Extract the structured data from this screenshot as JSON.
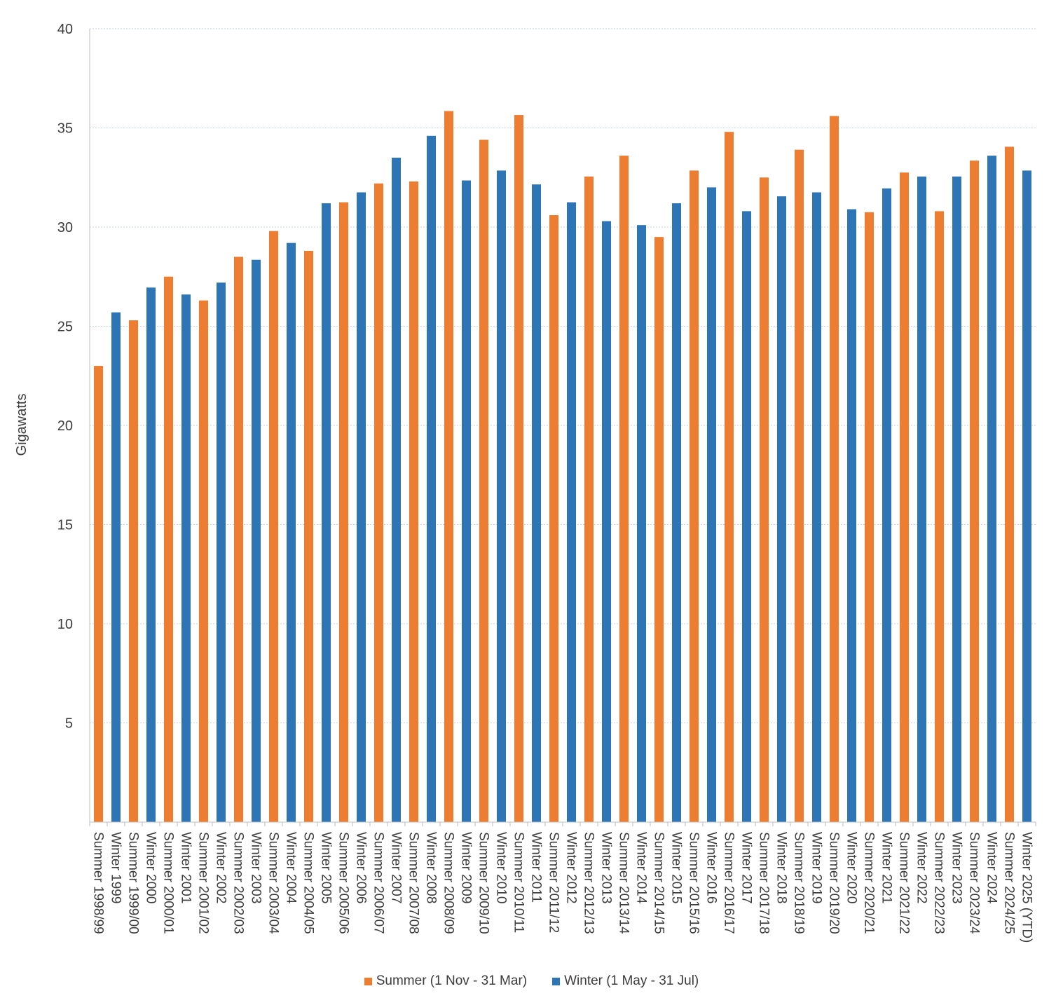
{
  "chart_data": {
    "type": "bar",
    "title": "",
    "xlabel": "",
    "ylabel": "Gigawatts",
    "ylim": [
      0,
      40
    ],
    "yticks": [
      5,
      10,
      15,
      20,
      25,
      30,
      35,
      40
    ],
    "grid": true,
    "legend_position": "bottom",
    "series": [
      {
        "name": "Summer (1 Nov - 31 Mar)",
        "color": "#ED7D31"
      },
      {
        "name": "Winter (1 May - 31 Jul)",
        "color": "#2E75B6"
      }
    ],
    "bars": [
      {
        "label": "Summer 1998/99",
        "series": 0,
        "value": 23.0
      },
      {
        "label": "Winter 1999",
        "series": 1,
        "value": 25.7
      },
      {
        "label": "Summer 1999/00",
        "series": 0,
        "value": 25.3
      },
      {
        "label": "Winter 2000",
        "series": 1,
        "value": 26.95
      },
      {
        "label": "Summer 2000/01",
        "series": 0,
        "value": 27.5
      },
      {
        "label": "Winter 2001",
        "series": 1,
        "value": 26.6
      },
      {
        "label": "Summer 2001/02",
        "series": 0,
        "value": 26.3
      },
      {
        "label": "Winter 2002",
        "series": 1,
        "value": 27.2
      },
      {
        "label": "Summer 2002/03",
        "series": 0,
        "value": 28.5
      },
      {
        "label": "Winter 2003",
        "series": 1,
        "value": 28.35
      },
      {
        "label": "Summer 2003/04",
        "series": 0,
        "value": 29.8
      },
      {
        "label": "Winter 2004",
        "series": 1,
        "value": 29.2
      },
      {
        "label": "Summer 2004/05",
        "series": 0,
        "value": 28.8
      },
      {
        "label": "Winter 2005",
        "series": 1,
        "value": 31.2
      },
      {
        "label": "Summer 2005/06",
        "series": 0,
        "value": 31.25
      },
      {
        "label": "Winter 2006",
        "series": 1,
        "value": 31.75
      },
      {
        "label": "Summer 2006/07",
        "series": 0,
        "value": 32.2
      },
      {
        "label": "Winter 2007",
        "series": 1,
        "value": 33.5
      },
      {
        "label": "Summer 2007/08",
        "series": 0,
        "value": 32.3
      },
      {
        "label": "Winter 2008",
        "series": 1,
        "value": 34.6
      },
      {
        "label": "Summer 2008/09",
        "series": 0,
        "value": 35.85
      },
      {
        "label": "Winter 2009",
        "series": 1,
        "value": 32.35
      },
      {
        "label": "Summer 2009/10",
        "series": 0,
        "value": 34.4
      },
      {
        "label": "Winter 2010",
        "series": 1,
        "value": 32.85
      },
      {
        "label": "Summer 2010/11",
        "series": 0,
        "value": 35.65
      },
      {
        "label": "Winter 2011",
        "series": 1,
        "value": 32.15
      },
      {
        "label": "Summer 2011/12",
        "series": 0,
        "value": 30.6
      },
      {
        "label": "Winter 2012",
        "series": 1,
        "value": 31.25
      },
      {
        "label": "Summer 2012/13",
        "series": 0,
        "value": 32.55
      },
      {
        "label": "Winter 2013",
        "series": 1,
        "value": 30.3
      },
      {
        "label": "Summer 2013/14",
        "series": 0,
        "value": 33.6
      },
      {
        "label": "Winter 2014",
        "series": 1,
        "value": 30.1
      },
      {
        "label": "Summer 2014/15",
        "series": 0,
        "value": 29.5
      },
      {
        "label": "Winter 2015",
        "series": 1,
        "value": 31.2
      },
      {
        "label": "Summer 2015/16",
        "series": 0,
        "value": 32.85
      },
      {
        "label": "Winter 2016",
        "series": 1,
        "value": 32.0
      },
      {
        "label": "Summer 2016/17",
        "series": 0,
        "value": 34.8
      },
      {
        "label": "Winter 2017",
        "series": 1,
        "value": 30.8
      },
      {
        "label": "Summer 2017/18",
        "series": 0,
        "value": 32.5
      },
      {
        "label": "Winter 2018",
        "series": 1,
        "value": 31.55
      },
      {
        "label": "Summer 2018/19",
        "series": 0,
        "value": 33.9
      },
      {
        "label": "Winter 2019",
        "series": 1,
        "value": 31.75
      },
      {
        "label": "Summer 2019/20",
        "series": 0,
        "value": 35.6
      },
      {
        "label": "Winter 2020",
        "series": 1,
        "value": 30.9
      },
      {
        "label": "Summer 2020/21",
        "series": 0,
        "value": 30.75
      },
      {
        "label": "Winter 2021",
        "series": 1,
        "value": 31.95
      },
      {
        "label": "Summer 2021/22",
        "series": 0,
        "value": 32.75
      },
      {
        "label": "Winter 2022",
        "series": 1,
        "value": 32.55
      },
      {
        "label": "Summer 2022/23",
        "series": 0,
        "value": 30.8
      },
      {
        "label": "Winter 2023",
        "series": 1,
        "value": 32.55
      },
      {
        "label": "Summer 2023/24",
        "series": 0,
        "value": 33.35
      },
      {
        "label": "Winter 2024",
        "series": 1,
        "value": 33.6
      },
      {
        "label": "Summer 2024/25",
        "series": 0,
        "value": 34.05
      },
      {
        "label": "Winter 2025 (YTD)",
        "series": 1,
        "value": 32.85
      }
    ]
  }
}
